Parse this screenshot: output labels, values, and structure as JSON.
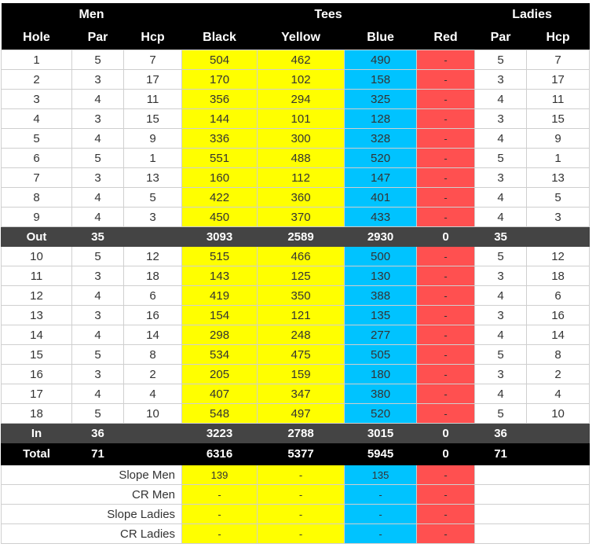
{
  "header": {
    "group_men": "Men",
    "group_tees": "Tees",
    "group_ladies": "Ladies",
    "columns": [
      "Hole",
      "Par",
      "Hcp",
      "Black",
      "Yellow",
      "Blue",
      "Red",
      "Par",
      "Hcp"
    ]
  },
  "colors": {
    "black_tee": "#ffff00",
    "yellow_tee": "#ffff00",
    "blue_tee": "#00c3ff",
    "red_tee": "#ff5050",
    "header_bg": "#000000",
    "subtotal_bg": "#444444"
  },
  "front_nine": [
    {
      "hole": "1",
      "par": "5",
      "hcp": "7",
      "black": "504",
      "yellow": "462",
      "blue": "490",
      "red": "-",
      "lpar": "5",
      "lhcp": "7"
    },
    {
      "hole": "2",
      "par": "3",
      "hcp": "17",
      "black": "170",
      "yellow": "102",
      "blue": "158",
      "red": "-",
      "lpar": "3",
      "lhcp": "17"
    },
    {
      "hole": "3",
      "par": "4",
      "hcp": "11",
      "black": "356",
      "yellow": "294",
      "blue": "325",
      "red": "-",
      "lpar": "4",
      "lhcp": "11"
    },
    {
      "hole": "4",
      "par": "3",
      "hcp": "15",
      "black": "144",
      "yellow": "101",
      "blue": "128",
      "red": "-",
      "lpar": "3",
      "lhcp": "15"
    },
    {
      "hole": "5",
      "par": "4",
      "hcp": "9",
      "black": "336",
      "yellow": "300",
      "blue": "328",
      "red": "-",
      "lpar": "4",
      "lhcp": "9"
    },
    {
      "hole": "6",
      "par": "5",
      "hcp": "1",
      "black": "551",
      "yellow": "488",
      "blue": "520",
      "red": "-",
      "lpar": "5",
      "lhcp": "1"
    },
    {
      "hole": "7",
      "par": "3",
      "hcp": "13",
      "black": "160",
      "yellow": "112",
      "blue": "147",
      "red": "-",
      "lpar": "3",
      "lhcp": "13"
    },
    {
      "hole": "8",
      "par": "4",
      "hcp": "5",
      "black": "422",
      "yellow": "360",
      "blue": "401",
      "red": "-",
      "lpar": "4",
      "lhcp": "5"
    },
    {
      "hole": "9",
      "par": "4",
      "hcp": "3",
      "black": "450",
      "yellow": "370",
      "blue": "433",
      "red": "-",
      "lpar": "4",
      "lhcp": "3"
    }
  ],
  "out": {
    "label": "Out",
    "par": "35",
    "hcp": "",
    "black": "3093",
    "yellow": "2589",
    "blue": "2930",
    "red": "0",
    "lpar": "35",
    "lhcp": ""
  },
  "back_nine": [
    {
      "hole": "10",
      "par": "5",
      "hcp": "12",
      "black": "515",
      "yellow": "466",
      "blue": "500",
      "red": "-",
      "lpar": "5",
      "lhcp": "12"
    },
    {
      "hole": "11",
      "par": "3",
      "hcp": "18",
      "black": "143",
      "yellow": "125",
      "blue": "130",
      "red": "-",
      "lpar": "3",
      "lhcp": "18"
    },
    {
      "hole": "12",
      "par": "4",
      "hcp": "6",
      "black": "419",
      "yellow": "350",
      "blue": "388",
      "red": "-",
      "lpar": "4",
      "lhcp": "6"
    },
    {
      "hole": "13",
      "par": "3",
      "hcp": "16",
      "black": "154",
      "yellow": "121",
      "blue": "135",
      "red": "-",
      "lpar": "3",
      "lhcp": "16"
    },
    {
      "hole": "14",
      "par": "4",
      "hcp": "14",
      "black": "298",
      "yellow": "248",
      "blue": "277",
      "red": "-",
      "lpar": "4",
      "lhcp": "14"
    },
    {
      "hole": "15",
      "par": "5",
      "hcp": "8",
      "black": "534",
      "yellow": "475",
      "blue": "505",
      "red": "-",
      "lpar": "5",
      "lhcp": "8"
    },
    {
      "hole": "16",
      "par": "3",
      "hcp": "2",
      "black": "205",
      "yellow": "159",
      "blue": "180",
      "red": "-",
      "lpar": "3",
      "lhcp": "2"
    },
    {
      "hole": "17",
      "par": "4",
      "hcp": "4",
      "black": "407",
      "yellow": "347",
      "blue": "380",
      "red": "-",
      "lpar": "4",
      "lhcp": "4"
    },
    {
      "hole": "18",
      "par": "5",
      "hcp": "10",
      "black": "548",
      "yellow": "497",
      "blue": "520",
      "red": "-",
      "lpar": "5",
      "lhcp": "10"
    }
  ],
  "in": {
    "label": "In",
    "par": "36",
    "hcp": "",
    "black": "3223",
    "yellow": "2788",
    "blue": "3015",
    "red": "0",
    "lpar": "36",
    "lhcp": ""
  },
  "total": {
    "label": "Total",
    "par": "71",
    "hcp": "",
    "black": "6316",
    "yellow": "5377",
    "blue": "5945",
    "red": "0",
    "lpar": "71",
    "lhcp": ""
  },
  "ratings": [
    {
      "label": "Slope Men",
      "black": "139",
      "yellow": "-",
      "blue": "135",
      "red": "-"
    },
    {
      "label": "CR Men",
      "black": "-",
      "yellow": "-",
      "blue": "-",
      "red": "-"
    },
    {
      "label": "Slope Ladies",
      "black": "-",
      "yellow": "-",
      "blue": "-",
      "red": "-"
    },
    {
      "label": "CR Ladies",
      "black": "-",
      "yellow": "-",
      "blue": "-",
      "red": "-"
    }
  ]
}
